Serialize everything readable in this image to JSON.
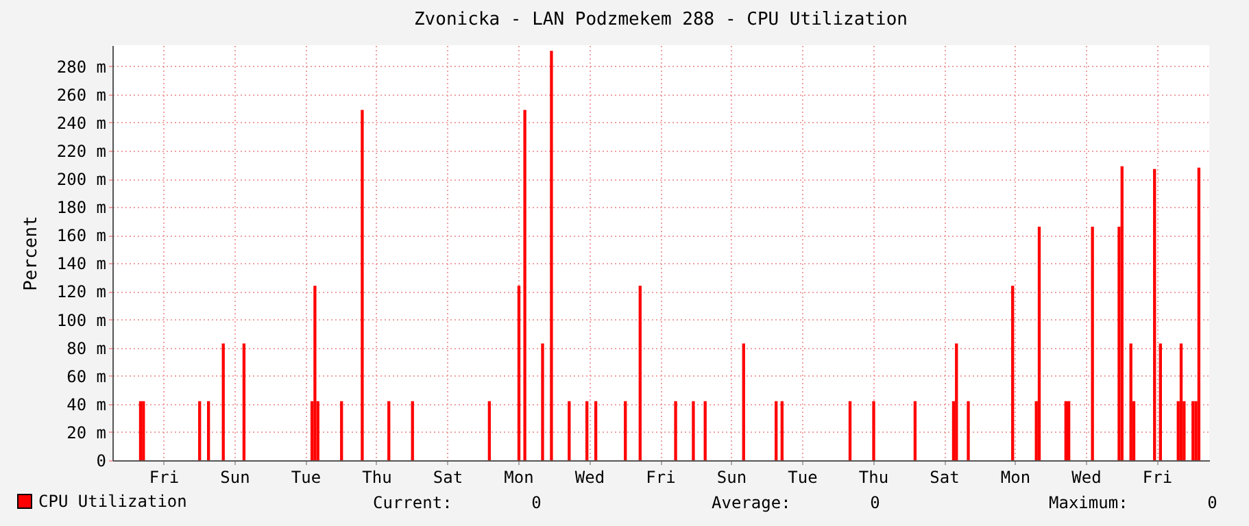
{
  "chart_data": {
    "type": "bar",
    "title": "Zvonicka - LAN Podzmekem 288 - CPU Utilization",
    "ylabel": "Percent",
    "categories": [
      null,
      null,
      null,
      null,
      null,
      null,
      null,
      null,
      null,
      null,
      null,
      null,
      null,
      null,
      null,
      null,
      null,
      "Fri",
      null,
      null,
      null,
      null,
      null,
      null,
      null,
      null,
      null,
      null,
      null,
      null,
      null,
      null,
      null,
      null,
      null,
      null,
      null,
      null,
      null,
      null,
      null,
      "Sun",
      null,
      null,
      null,
      null,
      null,
      null,
      null,
      null,
      null,
      null,
      null,
      null,
      null,
      null,
      null,
      null,
      null,
      null,
      null,
      null,
      null,
      null,
      null,
      "Tue",
      null,
      null,
      null,
      null,
      null,
      null,
      null,
      null,
      null,
      null,
      null,
      null,
      null,
      null,
      null,
      null,
      null,
      null,
      null,
      null,
      null,
      null,
      null,
      "Thu",
      null,
      null,
      null,
      null,
      null,
      null,
      null,
      null,
      null,
      null,
      null,
      null,
      null,
      null,
      null,
      null,
      null,
      null,
      null,
      null,
      null,
      null,
      null,
      "Sat",
      null,
      null,
      null,
      null,
      null,
      null,
      null,
      null,
      null,
      null,
      null,
      null,
      null,
      null,
      null,
      null,
      null,
      null,
      null,
      null,
      null,
      null,
      null,
      "Mon",
      null,
      null,
      null,
      null,
      null,
      null,
      null,
      null,
      null,
      null,
      null,
      null,
      null,
      null,
      null,
      null,
      null,
      null,
      null,
      null,
      null,
      null,
      null,
      "Wed",
      null,
      null,
      null,
      null,
      null,
      null,
      null,
      null,
      null,
      null,
      null,
      null,
      null,
      null,
      null,
      null,
      null,
      null,
      null,
      null,
      null,
      null,
      null,
      "Fri",
      null,
      null,
      null,
      null,
      null,
      null,
      null,
      null,
      null,
      null,
      null,
      null,
      null,
      null,
      null,
      null,
      null,
      null,
      null,
      null,
      null,
      null,
      null,
      "Sun",
      null,
      null,
      null,
      null,
      null,
      null,
      null,
      null,
      null,
      null,
      null,
      null,
      null,
      null,
      null,
      null,
      null,
      null,
      null,
      null,
      null,
      null,
      null,
      "Tue",
      null,
      null,
      null,
      null,
      null,
      null,
      null,
      null,
      null,
      null,
      null,
      null,
      null,
      null,
      null,
      null,
      null,
      null,
      null,
      null,
      null,
      null,
      null,
      "Thu",
      null,
      null,
      null,
      null,
      null,
      null,
      null,
      null,
      null,
      null,
      null,
      null,
      null,
      null,
      null,
      null,
      null,
      null,
      null,
      null,
      null,
      null,
      null,
      "Sat",
      null,
      null,
      null,
      null,
      null,
      null,
      null,
      null,
      null,
      null,
      null,
      null,
      null,
      null,
      null,
      null,
      null,
      null,
      null,
      null,
      null,
      null,
      null,
      "Mon",
      null,
      null,
      null,
      null,
      null,
      null,
      null,
      null,
      null,
      null,
      null,
      null,
      null,
      null,
      null,
      null,
      null,
      null,
      null,
      null,
      null,
      null,
      null,
      "Wed",
      null,
      null,
      null,
      null,
      null,
      null,
      null,
      null,
      null,
      null,
      null,
      null,
      null,
      null,
      null,
      null,
      null,
      null,
      null,
      null,
      null,
      null,
      null,
      "Fri",
      null,
      null,
      null,
      null,
      null,
      null,
      null,
      null,
      null,
      null,
      null,
      null,
      null,
      null,
      null,
      null,
      null
    ],
    "ylim": [
      0,
      295
    ],
    "yticks": [
      0,
      {
        "value": 20,
        "label": "20 m"
      },
      {
        "value": 40,
        "label": "40 m"
      },
      {
        "value": 60,
        "label": "60 m"
      },
      {
        "value": 80,
        "label": "80 m"
      },
      {
        "value": 100,
        "label": "100 m"
      },
      {
        "value": 120,
        "label": "120 m"
      },
      {
        "value": 140,
        "label": "140 m"
      },
      {
        "value": 160,
        "label": "160 m"
      },
      {
        "value": 180,
        "label": "180 m"
      },
      {
        "value": 200,
        "label": "200 m"
      },
      {
        "value": 220,
        "label": "220 m"
      },
      {
        "value": 240,
        "label": "240 m"
      },
      {
        "value": 260,
        "label": "260 m"
      },
      {
        "value": 280,
        "label": "280 m"
      }
    ],
    "grid": true,
    "legend": "bottom left",
    "series": [
      {
        "name": "CPU Utilization",
        "color": "#ff0000",
        "values": [
          0,
          0,
          0,
          0,
          0,
          0,
          0,
          0,
          0,
          42,
          42,
          0,
          0,
          0,
          0,
          0,
          0,
          0,
          0,
          0,
          0,
          0,
          0,
          0,
          0,
          0,
          0,
          0,
          0,
          42,
          0,
          0,
          42,
          0,
          0,
          0,
          0,
          83,
          0,
          0,
          0,
          0,
          0,
          0,
          83,
          0,
          0,
          0,
          0,
          0,
          0,
          0,
          0,
          0,
          0,
          0,
          0,
          0,
          0,
          0,
          0,
          0,
          0,
          0,
          0,
          0,
          0,
          42,
          124,
          42,
          0,
          0,
          0,
          0,
          0,
          0,
          0,
          42,
          0,
          0,
          0,
          0,
          0,
          0,
          249,
          0,
          0,
          0,
          0,
          0,
          0,
          0,
          0,
          42,
          0,
          0,
          0,
          0,
          0,
          0,
          0,
          42,
          0,
          0,
          0,
          0,
          0,
          0,
          0,
          0,
          0,
          0,
          0,
          0,
          0,
          0,
          0,
          0,
          0,
          0,
          0,
          0,
          0,
          0,
          0,
          0,
          0,
          42,
          0,
          0,
          0,
          0,
          0,
          0,
          0,
          0,
          0,
          124,
          0,
          249,
          0,
          0,
          0,
          0,
          0,
          83,
          0,
          0,
          291,
          0,
          0,
          0,
          0,
          0,
          42,
          0,
          0,
          0,
          0,
          0,
          42,
          0,
          0,
          42,
          0,
          0,
          0,
          0,
          0,
          0,
          0,
          0,
          0,
          42,
          0,
          0,
          0,
          0,
          124,
          0,
          0,
          0,
          0,
          0,
          0,
          0,
          0,
          0,
          0,
          0,
          42,
          0,
          0,
          0,
          0,
          0,
          42,
          0,
          0,
          0,
          42,
          0,
          0,
          0,
          0,
          0,
          0,
          0,
          0,
          0,
          0,
          0,
          0,
          83,
          0,
          0,
          0,
          0,
          0,
          0,
          0,
          0,
          0,
          0,
          42,
          0,
          42,
          0,
          0,
          0,
          0,
          0,
          0,
          0,
          0,
          0,
          0,
          0,
          0,
          0,
          0,
          0,
          0,
          0,
          0,
          0,
          0,
          0,
          0,
          42,
          0,
          0,
          0,
          0,
          0,
          0,
          0,
          42,
          0,
          0,
          0,
          0,
          0,
          0,
          0,
          0,
          0,
          0,
          0,
          0,
          0,
          42,
          0,
          0,
          0,
          0,
          0,
          0,
          0,
          0,
          0,
          0,
          0,
          0,
          42,
          83,
          0,
          0,
          0,
          42,
          0,
          0,
          0,
          0,
          0,
          0,
          0,
          0,
          0,
          0,
          0,
          0,
          0,
          0,
          124,
          0,
          0,
          0,
          0,
          0,
          0,
          0,
          42,
          166,
          0,
          0,
          0,
          0,
          0,
          0,
          0,
          0,
          42,
          42,
          0,
          0,
          0,
          0,
          0,
          0,
          0,
          166,
          0,
          0,
          0,
          0,
          0,
          0,
          0,
          0,
          166,
          209,
          0,
          0,
          83,
          42,
          0,
          0,
          0,
          0,
          0,
          0,
          207,
          0,
          83,
          0,
          0,
          0,
          0,
          0,
          42,
          83,
          42,
          0,
          0,
          42,
          42,
          208,
          0,
          0,
          0
        ]
      }
    ],
    "annotations": [
      "Current:        0",
      "Average:        0",
      "Maximum:        0"
    ]
  }
}
